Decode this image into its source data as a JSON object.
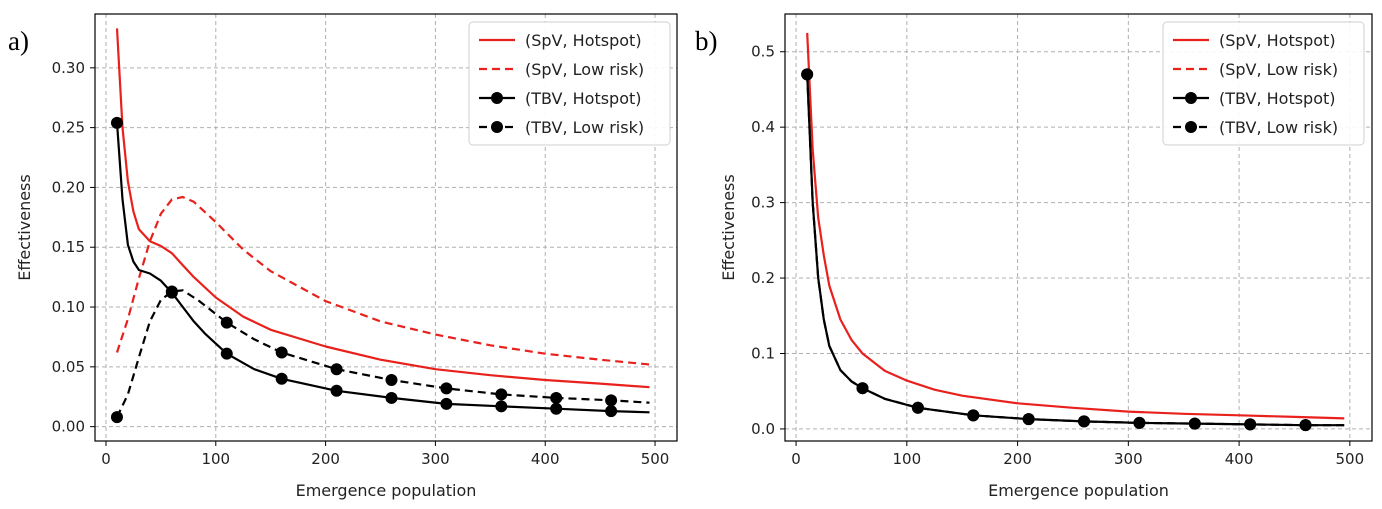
{
  "chart_data": [
    {
      "panel_label": "a)",
      "type": "line",
      "xlabel": "Emergence population",
      "ylabel": "Effectiveness",
      "xlim": [
        -10,
        520
      ],
      "ylim": [
        -0.012,
        0.345
      ],
      "xticks": [
        0,
        100,
        200,
        300,
        400,
        500
      ],
      "yticks": [
        0.0,
        0.05,
        0.1,
        0.15,
        0.2,
        0.25,
        0.3
      ],
      "ytick_labels": [
        "0.00",
        "0.05",
        "0.10",
        "0.15",
        "0.20",
        "0.25",
        "0.30"
      ],
      "grid": true,
      "legend_position": "top-right",
      "series": [
        {
          "name": "(SpV, Hotspot)",
          "color": "#e8211d",
          "dash": "solid",
          "marker": "none",
          "x": [
            10,
            15,
            20,
            25,
            30,
            40,
            50,
            60,
            70,
            80,
            100,
            125,
            150,
            200,
            250,
            300,
            350,
            400,
            450,
            495
          ],
          "y": [
            0.333,
            0.25,
            0.205,
            0.18,
            0.165,
            0.155,
            0.151,
            0.145,
            0.135,
            0.125,
            0.108,
            0.092,
            0.081,
            0.067,
            0.056,
            0.048,
            0.043,
            0.039,
            0.036,
            0.033
          ]
        },
        {
          "name": "(SpV, Low risk)",
          "color": "#e8211d",
          "dash": "dashed",
          "marker": "none",
          "x": [
            10,
            20,
            30,
            40,
            50,
            60,
            70,
            80,
            100,
            125,
            150,
            200,
            250,
            300,
            350,
            400,
            450,
            495
          ],
          "y": [
            0.062,
            0.09,
            0.124,
            0.155,
            0.178,
            0.19,
            0.192,
            0.188,
            0.171,
            0.148,
            0.13,
            0.105,
            0.088,
            0.077,
            0.068,
            0.061,
            0.056,
            0.052
          ]
        },
        {
          "name": "(TBV, Hotspot)",
          "color": "#000000",
          "dash": "solid",
          "marker": "circle",
          "x": [
            10,
            15,
            20,
            25,
            30,
            40,
            50,
            60,
            70,
            80,
            90,
            110,
            135,
            160,
            210,
            260,
            310,
            360,
            410,
            460,
            495
          ],
          "y": [
            0.254,
            0.19,
            0.152,
            0.138,
            0.131,
            0.128,
            0.122,
            0.112,
            0.1,
            0.088,
            0.078,
            0.061,
            0.048,
            0.04,
            0.03,
            0.024,
            0.019,
            0.017,
            0.015,
            0.013,
            0.012
          ],
          "marker_x": [
            10,
            60,
            110,
            160,
            210,
            260,
            310,
            360,
            410,
            460
          ],
          "marker_y": [
            0.254,
            0.112,
            0.061,
            0.04,
            0.03,
            0.024,
            0.019,
            0.017,
            0.015,
            0.013
          ]
        },
        {
          "name": "(TBV, Low risk)",
          "color": "#000000",
          "dash": "dashed",
          "marker": "circle",
          "x": [
            10,
            20,
            30,
            40,
            50,
            60,
            70,
            85,
            110,
            135,
            160,
            210,
            260,
            310,
            360,
            410,
            460,
            495
          ],
          "y": [
            0.008,
            0.027,
            0.058,
            0.088,
            0.106,
            0.113,
            0.114,
            0.105,
            0.087,
            0.073,
            0.062,
            0.048,
            0.039,
            0.032,
            0.027,
            0.024,
            0.022,
            0.02
          ],
          "marker_x": [
            10,
            60,
            110,
            160,
            210,
            260,
            310,
            360,
            410,
            460
          ],
          "marker_y": [
            0.008,
            0.113,
            0.087,
            0.062,
            0.048,
            0.039,
            0.032,
            0.027,
            0.024,
            0.022
          ]
        }
      ]
    },
    {
      "panel_label": "b)",
      "type": "line",
      "xlabel": "Emergence population",
      "ylabel": "Effectiveness",
      "xlim": [
        -10,
        520
      ],
      "ylim": [
        -0.016,
        0.55
      ],
      "xticks": [
        0,
        100,
        200,
        300,
        400,
        500
      ],
      "yticks": [
        0.0,
        0.1,
        0.2,
        0.3,
        0.4,
        0.5
      ],
      "ytick_labels": [
        "0.0",
        "0.1",
        "0.2",
        "0.3",
        "0.4",
        "0.5"
      ],
      "grid": true,
      "legend_position": "top-right",
      "series": [
        {
          "name": "(SpV, Hotspot)",
          "color": "#e8211d",
          "dash": "solid",
          "marker": "none",
          "x": [
            10,
            15,
            20,
            25,
            30,
            40,
            50,
            60,
            80,
            100,
            125,
            150,
            200,
            250,
            300,
            350,
            400,
            450,
            495
          ],
          "y": [
            0.525,
            0.37,
            0.28,
            0.23,
            0.19,
            0.145,
            0.118,
            0.1,
            0.077,
            0.064,
            0.052,
            0.044,
            0.034,
            0.028,
            0.023,
            0.02,
            0.018,
            0.016,
            0.014
          ]
        },
        {
          "name": "(SpV, Low risk)",
          "color": "#e8211d",
          "dash": "dashed",
          "marker": "none",
          "x": [],
          "y": []
        },
        {
          "name": "(TBV, Hotspot)",
          "color": "#000000",
          "dash": "solid",
          "marker": "circle",
          "x": [
            10,
            15,
            20,
            25,
            30,
            40,
            50,
            60,
            80,
            110,
            160,
            210,
            260,
            310,
            360,
            410,
            460,
            495
          ],
          "y": [
            0.47,
            0.3,
            0.2,
            0.145,
            0.11,
            0.078,
            0.063,
            0.054,
            0.04,
            0.028,
            0.018,
            0.013,
            0.01,
            0.008,
            0.007,
            0.006,
            0.005,
            0.005
          ],
          "marker_x": [
            10,
            60,
            110,
            160,
            210,
            260,
            310,
            360,
            410,
            460
          ],
          "marker_y": [
            0.47,
            0.054,
            0.028,
            0.018,
            0.013,
            0.01,
            0.008,
            0.007,
            0.006,
            0.005
          ]
        },
        {
          "name": "(TBV, Low risk)",
          "color": "#000000",
          "dash": "dashed",
          "marker": "circle",
          "x": [
            10,
            15,
            20,
            25,
            30,
            40,
            50,
            60,
            80,
            110,
            160,
            210,
            260,
            310,
            360,
            410,
            460,
            495
          ],
          "y": [
            0.47,
            0.3,
            0.2,
            0.145,
            0.11,
            0.078,
            0.063,
            0.054,
            0.04,
            0.028,
            0.018,
            0.013,
            0.01,
            0.008,
            0.007,
            0.006,
            0.005,
            0.005
          ],
          "marker_x": [
            10,
            60,
            110,
            160,
            210,
            260,
            310,
            360,
            410,
            460
          ],
          "marker_y": [
            0.47,
            0.054,
            0.028,
            0.018,
            0.013,
            0.01,
            0.008,
            0.007,
            0.006,
            0.005
          ]
        }
      ]
    }
  ]
}
